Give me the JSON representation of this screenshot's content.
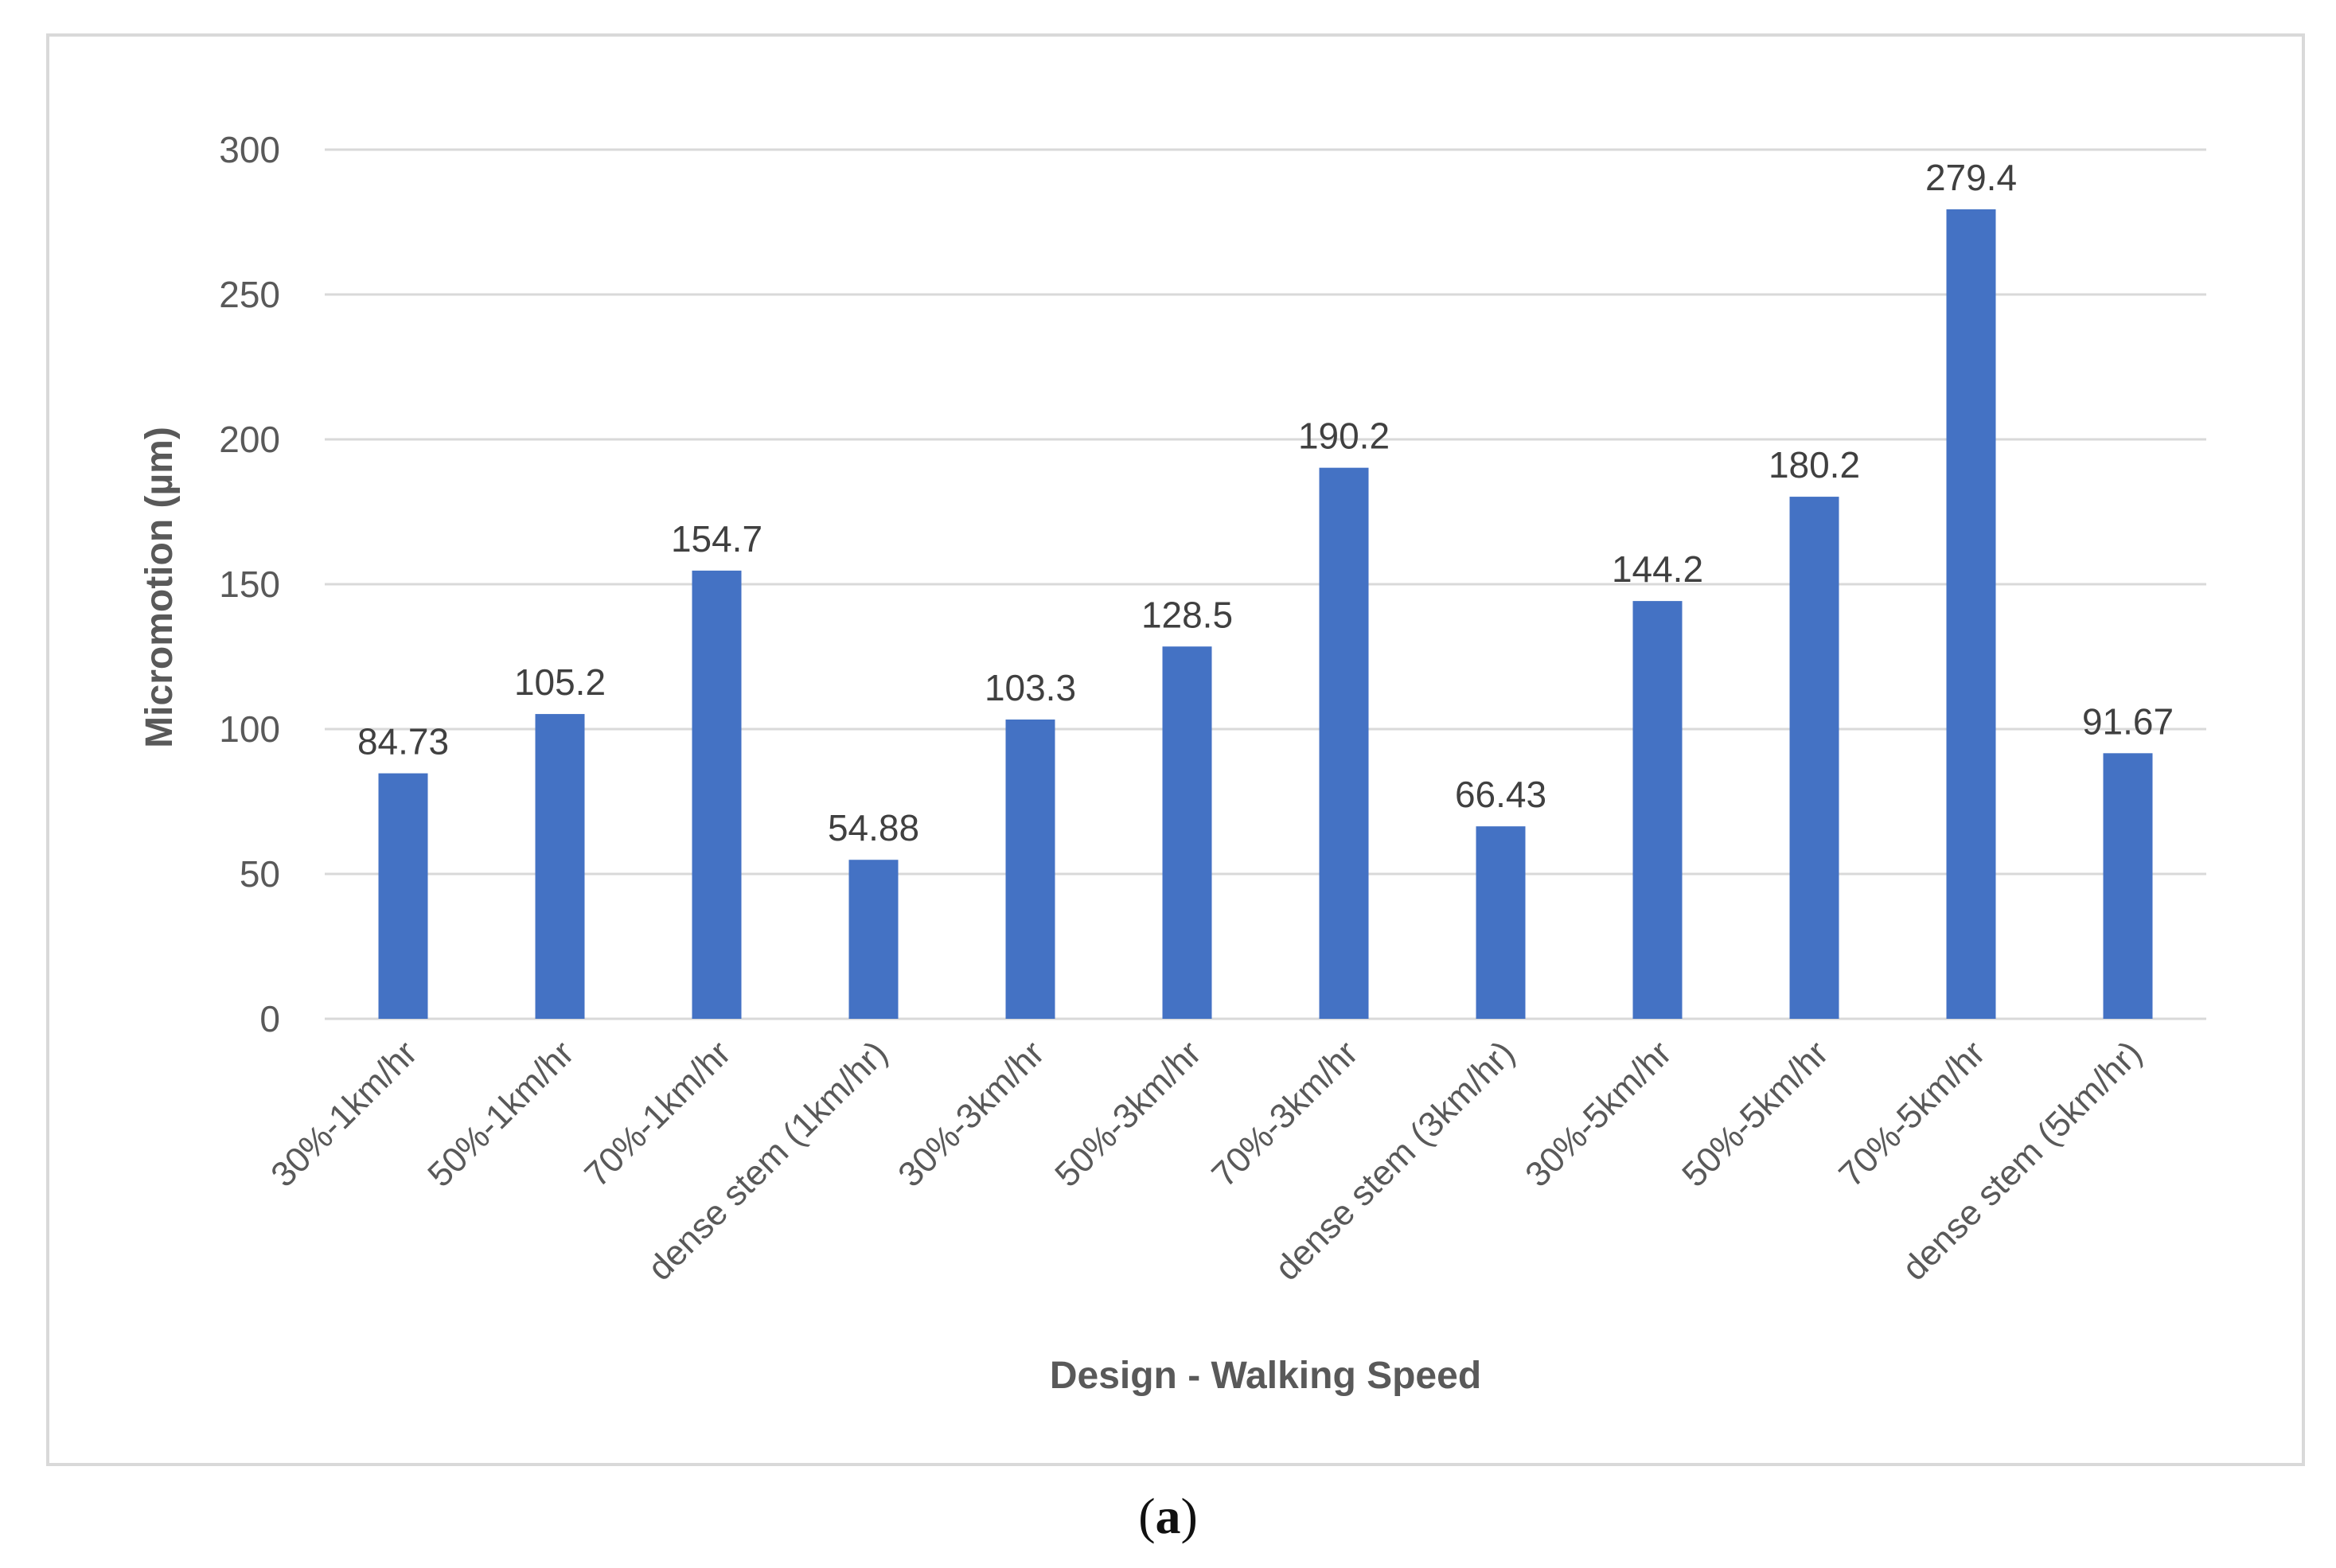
{
  "chart_data": {
    "type": "bar",
    "categories": [
      "30%-1km/hr",
      "50%-1km/hr",
      "70%-1km/hr",
      "dense stem (1km/hr)",
      "30%-3km/hr",
      "50%-3km/hr",
      "70%-3km/hr",
      "dense stem (3km/hr)",
      "30%-5km/hr",
      "50%-5km/hr",
      "70%-5km/hr",
      "dense stem (5km/hr)"
    ],
    "values": [
      84.73,
      105.2,
      154.7,
      54.88,
      103.3,
      128.5,
      190.2,
      66.43,
      144.2,
      180.2,
      279.4,
      91.67
    ],
    "data_labels": [
      "84.73",
      "105.2",
      "154.7",
      "54.88",
      "103.3",
      "128.5",
      "190.2",
      "66.43",
      "144.2",
      "180.2",
      "279.4",
      "91.67"
    ],
    "yticks": [
      0,
      50,
      100,
      150,
      200,
      250,
      300
    ],
    "ylim": [
      0,
      300
    ],
    "xlabel": "Design - Walking Speed",
    "ylabel": "Micromotion (µm)",
    "grid": true,
    "bar_color": "#4472c4"
  },
  "caption": {
    "open": "(",
    "letter": "a",
    "close": ")"
  }
}
